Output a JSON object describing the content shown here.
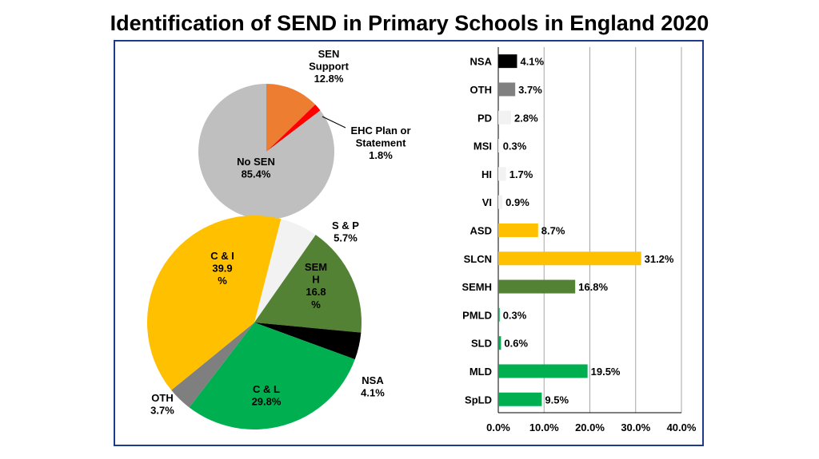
{
  "title": "Identification of SEND in Primary Schools in England 2020",
  "chart_data": [
    {
      "type": "pie",
      "slices": [
        {
          "label_lines": [
            "SEN",
            "Support",
            "12.8%"
          ],
          "value": 12.8,
          "color": "#ed7d31"
        },
        {
          "label_lines": [
            "EHC Plan or",
            "Statement",
            "1.8%"
          ],
          "value": 1.8,
          "color": "#ff0000"
        },
        {
          "label_lines": [
            "No SEN",
            "85.4%"
          ],
          "value": 85.4,
          "color": "#bfbfbf"
        }
      ]
    },
    {
      "type": "pie",
      "slices": [
        {
          "label_lines": [
            "S & P",
            "5.7%"
          ],
          "value": 5.7,
          "color": "#f2f2f2"
        },
        {
          "label_lines": [
            "SEM",
            "H",
            "16.8",
            "%"
          ],
          "value": 16.8,
          "color": "#548235"
        },
        {
          "label_lines": [
            "NSA",
            "4.1%"
          ],
          "value": 4.1,
          "color": "#000000"
        },
        {
          "label_lines": [
            "C & L",
            "29.8%"
          ],
          "value": 29.8,
          "color": "#00b050"
        },
        {
          "label_lines": [
            "OTH",
            "3.7%"
          ],
          "value": 3.7,
          "color": "#7f7f7f"
        },
        {
          "label_lines": [
            "C & I",
            "39.9",
            "%"
          ],
          "value": 39.9,
          "color": "#ffc000"
        }
      ]
    },
    {
      "type": "bar",
      "orientation": "horizontal",
      "categories": [
        "NSA",
        "OTH",
        "PD",
        "MSI",
        "HI",
        "VI",
        "ASD",
        "SLCN",
        "SEMH",
        "PMLD",
        "SLD",
        "MLD",
        "SpLD"
      ],
      "values": [
        4.1,
        3.7,
        2.8,
        0.3,
        1.7,
        0.9,
        8.7,
        31.2,
        16.8,
        0.3,
        0.6,
        19.5,
        9.5
      ],
      "value_labels": [
        "4.1%",
        "3.7%",
        "2.8%",
        "0.3%",
        "1.7%",
        "0.9%",
        "8.7%",
        "31.2%",
        "16.8%",
        "0.3%",
        "0.6%",
        "19.5%",
        "9.5%"
      ],
      "colors": [
        "#000000",
        "#808080",
        "#f2f2f2",
        "#f2f2f2",
        "#f2f2f2",
        "#f2f2f2",
        "#ffc000",
        "#ffc000",
        "#548235",
        "#00b050",
        "#00b050",
        "#00b050",
        "#00b050"
      ],
      "xlim": [
        0,
        40
      ],
      "x_ticks": [
        "0.0%",
        "10.0%",
        "20.0%",
        "30.0%",
        "40.0%"
      ],
      "grid": true
    }
  ]
}
